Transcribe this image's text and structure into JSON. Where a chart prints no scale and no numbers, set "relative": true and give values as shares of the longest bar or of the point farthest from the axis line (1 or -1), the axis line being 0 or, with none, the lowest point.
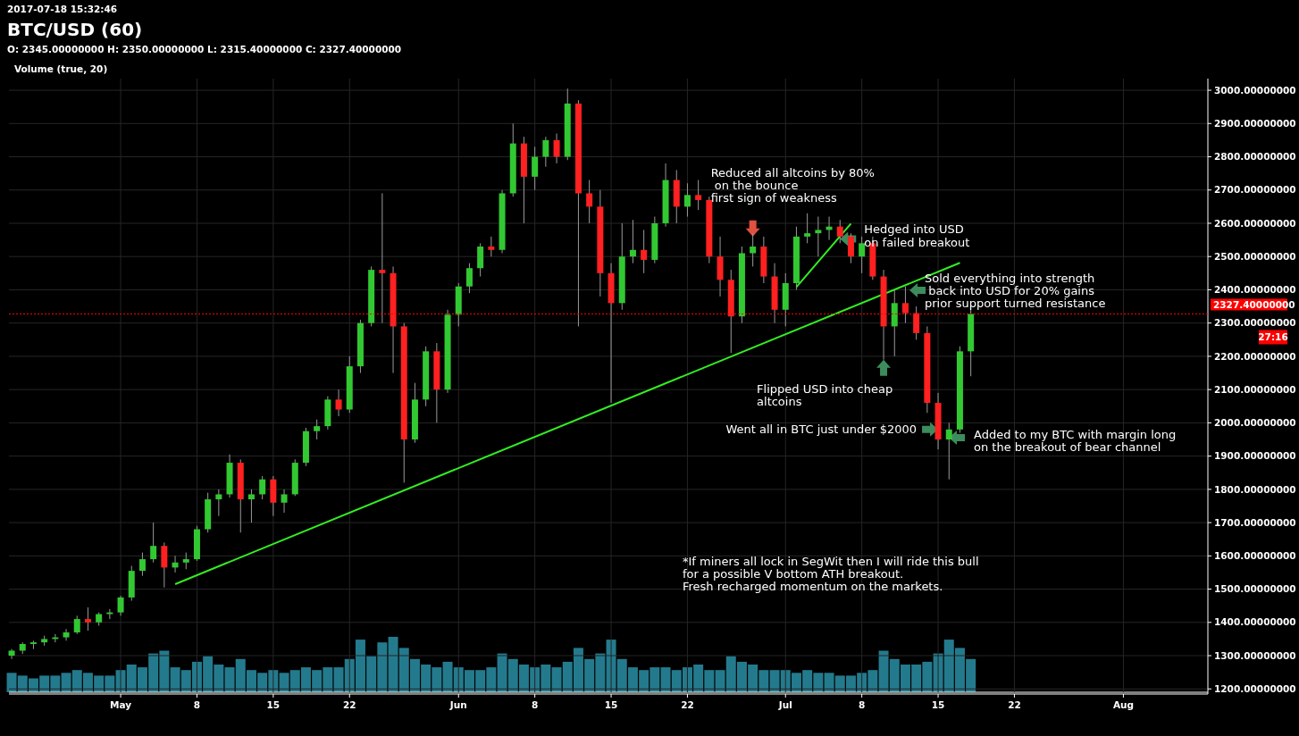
{
  "chart_data": [
    {
      "type": "candlestick",
      "title": "BTC/USD (60)",
      "subtitle": "O: 2345.00000000 H: 2350.00000000 L: 2315.40000000 C: 2327.40000000",
      "x": [
        "2017-04-21",
        "2017-04-22",
        "2017-04-23",
        "2017-04-24",
        "2017-04-25",
        "2017-04-26",
        "2017-04-27",
        "2017-04-28",
        "2017-04-29",
        "2017-04-30",
        "2017-05-01",
        "2017-05-02",
        "2017-05-03",
        "2017-05-04",
        "2017-05-05",
        "2017-05-06",
        "2017-05-07",
        "2017-05-08",
        "2017-05-09",
        "2017-05-10",
        "2017-05-11",
        "2017-05-12",
        "2017-05-13",
        "2017-05-14",
        "2017-05-15",
        "2017-05-16",
        "2017-05-17",
        "2017-05-18",
        "2017-05-19",
        "2017-05-20",
        "2017-05-21",
        "2017-05-22",
        "2017-05-23",
        "2017-05-24",
        "2017-05-25",
        "2017-05-26",
        "2017-05-27",
        "2017-05-28",
        "2017-05-29",
        "2017-05-30",
        "2017-05-31",
        "2017-06-01",
        "2017-06-02",
        "2017-06-03",
        "2017-06-04",
        "2017-06-05",
        "2017-06-06",
        "2017-06-07",
        "2017-06-08",
        "2017-06-09",
        "2017-06-10",
        "2017-06-11",
        "2017-06-12",
        "2017-06-13",
        "2017-06-14",
        "2017-06-15",
        "2017-06-16",
        "2017-06-17",
        "2017-06-18",
        "2017-06-19",
        "2017-06-20",
        "2017-06-21",
        "2017-06-22",
        "2017-06-23",
        "2017-06-24",
        "2017-06-25",
        "2017-06-26",
        "2017-06-27",
        "2017-06-28",
        "2017-06-29",
        "2017-06-30",
        "2017-07-01",
        "2017-07-02",
        "2017-07-03",
        "2017-07-04",
        "2017-07-05",
        "2017-07-06",
        "2017-07-07",
        "2017-07-08",
        "2017-07-09",
        "2017-07-10",
        "2017-07-11",
        "2017-07-12",
        "2017-07-13",
        "2017-07-14",
        "2017-07-15",
        "2017-07-16",
        "2017-07-17",
        "2017-07-18"
      ],
      "ohlc": [
        [
          1300,
          1320,
          1290,
          1315
        ],
        [
          1315,
          1340,
          1305,
          1335
        ],
        [
          1335,
          1345,
          1320,
          1340
        ],
        [
          1340,
          1360,
          1330,
          1350
        ],
        [
          1350,
          1365,
          1340,
          1355
        ],
        [
          1355,
          1380,
          1345,
          1370
        ],
        [
          1370,
          1420,
          1365,
          1410
        ],
        [
          1410,
          1445,
          1375,
          1400
        ],
        [
          1400,
          1430,
          1390,
          1425
        ],
        [
          1425,
          1440,
          1410,
          1430
        ],
        [
          1430,
          1480,
          1420,
          1475
        ],
        [
          1475,
          1570,
          1465,
          1555
        ],
        [
          1555,
          1610,
          1540,
          1590
        ],
        [
          1590,
          1700,
          1580,
          1630
        ],
        [
          1630,
          1640,
          1505,
          1565
        ],
        [
          1565,
          1600,
          1550,
          1580
        ],
        [
          1580,
          1610,
          1560,
          1590
        ],
        [
          1590,
          1690,
          1585,
          1680
        ],
        [
          1680,
          1790,
          1670,
          1770
        ],
        [
          1770,
          1800,
          1720,
          1785
        ],
        [
          1785,
          1905,
          1775,
          1880
        ],
        [
          1880,
          1890,
          1670,
          1770
        ],
        [
          1770,
          1800,
          1700,
          1785
        ],
        [
          1785,
          1840,
          1770,
          1830
        ],
        [
          1830,
          1840,
          1720,
          1760
        ],
        [
          1760,
          1800,
          1730,
          1785
        ],
        [
          1785,
          1890,
          1780,
          1880
        ],
        [
          1880,
          1985,
          1870,
          1975
        ],
        [
          1975,
          2010,
          1950,
          1990
        ],
        [
          1990,
          2080,
          1980,
          2070
        ],
        [
          2070,
          2100,
          2020,
          2040
        ],
        [
          2040,
          2200,
          2030,
          2170
        ],
        [
          2170,
          2310,
          2150,
          2300
        ],
        [
          2300,
          2470,
          2290,
          2460
        ],
        [
          2460,
          2690,
          2300,
          2450
        ],
        [
          2450,
          2470,
          2150,
          2290
        ],
        [
          2290,
          2300,
          1820,
          1950
        ],
        [
          1950,
          2120,
          1940,
          2070
        ],
        [
          2070,
          2230,
          2050,
          2215
        ],
        [
          2215,
          2240,
          2000,
          2100
        ],
        [
          2100,
          2340,
          2090,
          2325
        ],
        [
          2325,
          2420,
          2290,
          2410
        ],
        [
          2410,
          2480,
          2390,
          2465
        ],
        [
          2465,
          2540,
          2440,
          2530
        ],
        [
          2530,
          2560,
          2500,
          2520
        ],
        [
          2520,
          2700,
          2510,
          2690
        ],
        [
          2690,
          2900,
          2680,
          2840
        ],
        [
          2840,
          2860,
          2600,
          2740
        ],
        [
          2740,
          2830,
          2700,
          2800
        ],
        [
          2800,
          2860,
          2770,
          2850
        ],
        [
          2850,
          2870,
          2780,
          2800
        ],
        [
          2800,
          3005,
          2790,
          2960
        ],
        [
          2960,
          2970,
          2290,
          2690
        ],
        [
          2690,
          2730,
          2600,
          2650
        ],
        [
          2650,
          2700,
          2380,
          2450
        ],
        [
          2450,
          2480,
          2060,
          2360
        ],
        [
          2360,
          2600,
          2340,
          2500
        ],
        [
          2500,
          2610,
          2480,
          2520
        ],
        [
          2520,
          2580,
          2450,
          2490
        ],
        [
          2490,
          2620,
          2480,
          2600
        ],
        [
          2600,
          2780,
          2590,
          2730
        ],
        [
          2730,
          2760,
          2600,
          2650
        ],
        [
          2650,
          2720,
          2620,
          2685
        ],
        [
          2685,
          2730,
          2640,
          2670
        ],
        [
          2670,
          2680,
          2480,
          2500
        ],
        [
          2500,
          2560,
          2380,
          2430
        ],
        [
          2430,
          2460,
          2210,
          2320
        ],
        [
          2320,
          2530,
          2300,
          2510
        ],
        [
          2510,
          2570,
          2470,
          2530
        ],
        [
          2530,
          2560,
          2420,
          2440
        ],
        [
          2440,
          2480,
          2300,
          2340
        ],
        [
          2340,
          2450,
          2290,
          2420
        ],
        [
          2420,
          2590,
          2400,
          2560
        ],
        [
          2560,
          2630,
          2540,
          2570
        ],
        [
          2570,
          2620,
          2500,
          2580
        ],
        [
          2580,
          2620,
          2550,
          2590
        ],
        [
          2590,
          2610,
          2540,
          2560
        ],
        [
          2560,
          2570,
          2480,
          2500
        ],
        [
          2500,
          2560,
          2450,
          2540
        ],
        [
          2540,
          2560,
          2430,
          2440
        ],
        [
          2440,
          2460,
          2190,
          2290
        ],
        [
          2290,
          2400,
          2200,
          2360
        ],
        [
          2360,
          2410,
          2300,
          2330
        ],
        [
          2330,
          2350,
          2250,
          2270
        ],
        [
          2270,
          2290,
          2030,
          2060
        ],
        [
          2060,
          2090,
          1920,
          1950
        ],
        [
          1950,
          2000,
          1830,
          1980
        ],
        [
          1980,
          2230,
          1970,
          2215
        ],
        [
          2215,
          2350,
          2140,
          2327.4
        ]
      ],
      "series": [
        {
          "type": "line",
          "x": [
            "2017-05-06",
            "2017-07-17"
          ],
          "values": [
            1515,
            2481
          ],
          "color": "#33ee22"
        },
        {
          "type": "line",
          "x": [
            "2017-07-02",
            "2017-07-07"
          ],
          "values": [
            2408,
            2599
          ],
          "color": "#33ee22"
        }
      ],
      "xlim": [
        "2017-04-20T18:00",
        "2017-08-08T18:00"
      ],
      "xticks": [
        {
          "value": "2017-05-01",
          "label": "May"
        },
        {
          "value": "2017-05-08",
          "label": "8"
        },
        {
          "value": "2017-05-15",
          "label": "15"
        },
        {
          "value": "2017-05-22",
          "label": "22"
        },
        {
          "value": "2017-06-01",
          "label": "Jun"
        },
        {
          "value": "2017-06-08",
          "label": "8"
        },
        {
          "value": "2017-06-15",
          "label": "15"
        },
        {
          "value": "2017-06-22",
          "label": "22"
        },
        {
          "value": "2017-07-01",
          "label": "Jul"
        },
        {
          "value": "2017-07-08",
          "label": "8"
        },
        {
          "value": "2017-07-15",
          "label": "15"
        },
        {
          "value": "2017-07-22",
          "label": "22"
        },
        {
          "value": "2017-08-01",
          "label": "Aug"
        }
      ],
      "ylim": [
        1190,
        3035
      ],
      "yticks": [
        {
          "value": 1200,
          "label": "1200.00000000"
        },
        {
          "value": 1300,
          "label": "1300.00000000"
        },
        {
          "value": 1400,
          "label": "1400.00000000"
        },
        {
          "value": 1500,
          "label": "1500.00000000"
        },
        {
          "value": 1600,
          "label": "1600.00000000"
        },
        {
          "value": 1700,
          "label": "1700.00000000"
        },
        {
          "value": 1800,
          "label": "1800.00000000"
        },
        {
          "value": 1900,
          "label": "1900.00000000"
        },
        {
          "value": 2000,
          "label": "2000.00000000"
        },
        {
          "value": 2100,
          "label": "2100.00000000"
        },
        {
          "value": 2200,
          "label": "2200.00000000"
        },
        {
          "value": 2300,
          "label": "2300.00000000"
        },
        {
          "value": 2400,
          "label": "2400.00000000"
        },
        {
          "value": 2500,
          "label": "2500.00000000"
        },
        {
          "value": 2600,
          "label": "2600.00000000"
        },
        {
          "value": 2700,
          "label": "2700.00000000"
        },
        {
          "value": 2800,
          "label": "2800.00000000"
        },
        {
          "value": 2900,
          "label": "2900.00000000"
        },
        {
          "value": 3000,
          "label": "3000.00000000"
        }
      ],
      "grid": true,
      "ref_lines": [
        {
          "axis": "y",
          "value": 2327.4,
          "label": "2327.40000000",
          "color": "#ff0000",
          "line_style": "dotted"
        }
      ],
      "annotations": [
        "2017-07-18 15:32:46",
        "27:16",
        {
          "text": "Reduced all altcoins by 80%\n on the bounce\nfirst sign of weakness",
          "x": "2017-06-28",
          "y": 2560
        },
        {
          "text": "Hedged into USD\non failed breakout",
          "x": "2017-07-06",
          "y": 2553
        },
        "Sold everything into strength\n back into USD for 20% gains\nprior support turned resistance",
        {
          "text": "Flipped USD into cheap\naltcoins",
          "x": "2017-07-10",
          "y": 2190
        },
        {
          "text": "Went all in BTC just under $2000",
          "x": "2017-07-15",
          "y": 1980
        },
        "Added to my BTC with margin long\non the breakout of bear channel",
        "*If miners all lock in SegWit then I will ride this bull\nfor a possible V bottom ATH breakout.\nFresh recharged momentum on the markets."
      ]
    },
    {
      "type": "bar",
      "title": "Volume (true, 20)",
      "relative": true,
      "color": "#2a8fa6",
      "x": [
        "2017-04-21",
        "2017-04-22",
        "2017-04-23",
        "2017-04-24",
        "2017-04-25",
        "2017-04-26",
        "2017-04-27",
        "2017-04-28",
        "2017-04-29",
        "2017-04-30",
        "2017-05-01",
        "2017-05-02",
        "2017-05-03",
        "2017-05-04",
        "2017-05-05",
        "2017-05-06",
        "2017-05-07",
        "2017-05-08",
        "2017-05-09",
        "2017-05-10",
        "2017-05-11",
        "2017-05-12",
        "2017-05-13",
        "2017-05-14",
        "2017-05-15",
        "2017-05-16",
        "2017-05-17",
        "2017-05-18",
        "2017-05-19",
        "2017-05-20",
        "2017-05-21",
        "2017-05-22",
        "2017-05-23",
        "2017-05-24",
        "2017-05-25",
        "2017-05-26",
        "2017-05-27",
        "2017-05-28",
        "2017-05-29",
        "2017-05-30",
        "2017-05-31",
        "2017-06-01",
        "2017-06-02",
        "2017-06-03",
        "2017-06-04",
        "2017-06-05",
        "2017-06-06",
        "2017-06-07",
        "2017-06-08",
        "2017-06-09",
        "2017-06-10",
        "2017-06-11",
        "2017-06-12",
        "2017-06-13",
        "2017-06-14",
        "2017-06-15",
        "2017-06-16",
        "2017-06-17",
        "2017-06-18",
        "2017-06-19",
        "2017-06-20",
        "2017-06-21",
        "2017-06-22",
        "2017-06-23",
        "2017-06-24",
        "2017-06-25",
        "2017-06-26",
        "2017-06-27",
        "2017-06-28",
        "2017-06-29",
        "2017-06-30",
        "2017-07-01",
        "2017-07-02",
        "2017-07-03",
        "2017-07-04",
        "2017-07-05",
        "2017-07-06",
        "2017-07-07",
        "2017-07-08",
        "2017-07-09",
        "2017-07-10",
        "2017-07-11",
        "2017-07-12",
        "2017-07-13",
        "2017-07-14",
        "2017-07-15",
        "2017-07-16",
        "2017-07-17",
        "2017-07-18"
      ],
      "values": [
        0.35,
        0.3,
        0.25,
        0.3,
        0.3,
        0.35,
        0.4,
        0.35,
        0.3,
        0.3,
        0.4,
        0.5,
        0.45,
        0.7,
        0.75,
        0.45,
        0.4,
        0.55,
        0.65,
        0.5,
        0.45,
        0.6,
        0.4,
        0.35,
        0.4,
        0.35,
        0.4,
        0.45,
        0.4,
        0.45,
        0.45,
        0.6,
        0.95,
        0.65,
        0.9,
        1,
        0.8,
        0.6,
        0.5,
        0.45,
        0.55,
        0.45,
        0.4,
        0.4,
        0.45,
        0.7,
        0.6,
        0.5,
        0.45,
        0.5,
        0.45,
        0.55,
        0.8,
        0.6,
        0.7,
        0.95,
        0.6,
        0.45,
        0.4,
        0.45,
        0.45,
        0.4,
        0.45,
        0.5,
        0.4,
        0.4,
        0.65,
        0.55,
        0.5,
        0.4,
        0.4,
        0.4,
        0.35,
        0.4,
        0.35,
        0.35,
        0.3,
        0.3,
        0.35,
        0.4,
        0.75,
        0.6,
        0.5,
        0.5,
        0.55,
        0.7,
        0.95,
        0.8,
        0.6
      ],
      "xlim": [
        "2017-04-20T18:00",
        "2017-08-08T18:00"
      ]
    }
  ]
}
